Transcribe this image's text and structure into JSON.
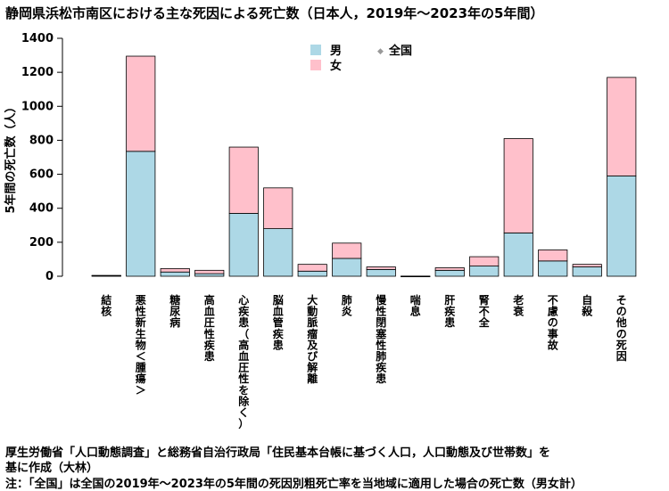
{
  "chart_data": {
    "type": "bar",
    "stacked": true,
    "title": "静岡県浜松市南区における主な死因による死亡数（日本人，2019年～2023年の5年間）",
    "ylabel": "5年間の死亡数（人）",
    "xlabel": "",
    "ylim": [
      0,
      1400
    ],
    "yticks": [
      0,
      200,
      400,
      600,
      800,
      1000,
      1200,
      1400
    ],
    "grid": false,
    "legend_position": "top-center",
    "categories": [
      "結核",
      "悪性新生物＜腫瘍＞",
      "糖尿病",
      "高血圧性疾患",
      "心疾患（高血圧性を除く）",
      "脳血管疾患",
      "大動脈瘤及び解離",
      "肺炎",
      "慢性閉塞性肺疾患",
      "喘息",
      "肝疾患",
      "腎不全",
      "老衰",
      "不慮の事故",
      "自殺",
      "その他の死因"
    ],
    "series": [
      {
        "name": "男",
        "color": "#add8e6",
        "values": [
          3,
          735,
          25,
          15,
          370,
          280,
          30,
          105,
          40,
          0,
          35,
          60,
          255,
          90,
          55,
          590
        ]
      },
      {
        "name": "女",
        "color": "#ffc0cb",
        "values": [
          2,
          560,
          20,
          20,
          390,
          240,
          40,
          90,
          15,
          1,
          15,
          55,
          555,
          65,
          15,
          580
        ]
      }
    ],
    "legend_extra": {
      "name": "全国",
      "marker": "◆",
      "color": "#999999"
    },
    "bar_edge_color": "#000000"
  },
  "footnotes": [
    "厚生労働省「人口動態調査」と総務省自治行政局「住民基本台帳に基づく人口，人口動態及び世帯数」を",
    "基に作成（大林）",
    "注：「全国」は全国の2019年～2023年の5年間の死因別粗死亡率を当地域に適用した場合の死亡数（男女計）"
  ]
}
